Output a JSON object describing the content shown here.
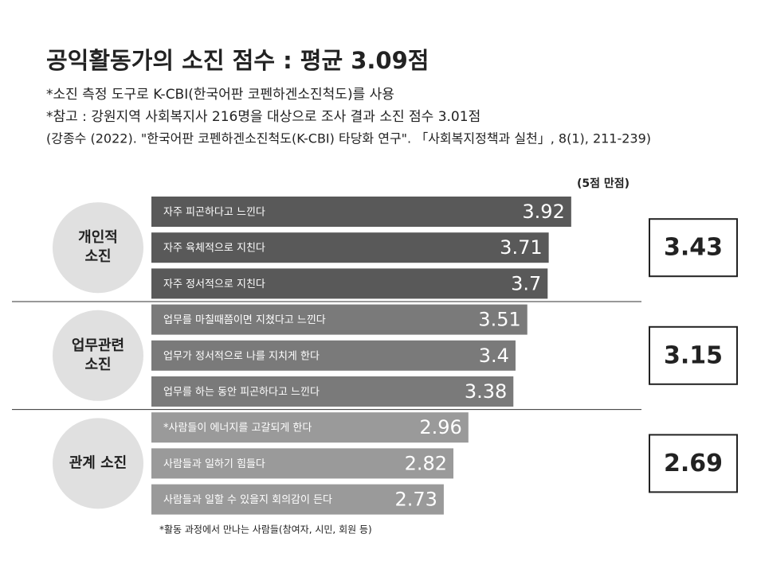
{
  "chart_data": {
    "type": "bar",
    "title": "공익활동가의 소진 점수 : 평균 3.09점",
    "notes": [
      "*소진 측정 도구로 K-CBI(한국어판 코펜하겐소진척도)를 사용",
      "*참고 : 강원지역 사회복지사 216명을 대상으로 조사 결과 소진 점수 3.01점",
      "(강종수 (2022). \"한국어판 코펜하겐소진척도(K-CBI) 타당화 연구\". 「사회복지정책과 실천」, 8(1), 211-239)"
    ],
    "unit_label": "(5점 만점)",
    "xlim": [
      0,
      5
    ],
    "groups": [
      {
        "label_lines": [
          "개인적",
          "소진"
        ],
        "average": 3.43,
        "color": "#595959",
        "categories": [
          "자주 피곤하다고 느낀다",
          "자주 육체적으로 지친다",
          "자주 정서적으로 지친다"
        ],
        "values": [
          3.92,
          3.71,
          3.7
        ]
      },
      {
        "label_lines": [
          "업무관련",
          "소진"
        ],
        "average": 3.15,
        "color": "#7a7a7a",
        "categories": [
          "업무를 마칠때쯤이면 지쳤다고 느낀다",
          "업무가 정서적으로 나를 지치게 한다",
          "업무를 하는 동안 피곤하다고 느낀다"
        ],
        "values": [
          3.51,
          3.4,
          3.38
        ]
      },
      {
        "label_lines": [
          "관계 소진"
        ],
        "average": 2.69,
        "color": "#9a9a9a",
        "categories": [
          "*사람들이 에너지를 고갈되게 한다",
          "사람들과 일하기 힘들다",
          "사람들과 일할 수 있을지 회의감이 든다"
        ],
        "values": [
          2.96,
          2.82,
          2.73
        ]
      }
    ],
    "footnote": "*활동 과정에서 만나는 사람들(참여자, 시민, 회원 등)"
  }
}
